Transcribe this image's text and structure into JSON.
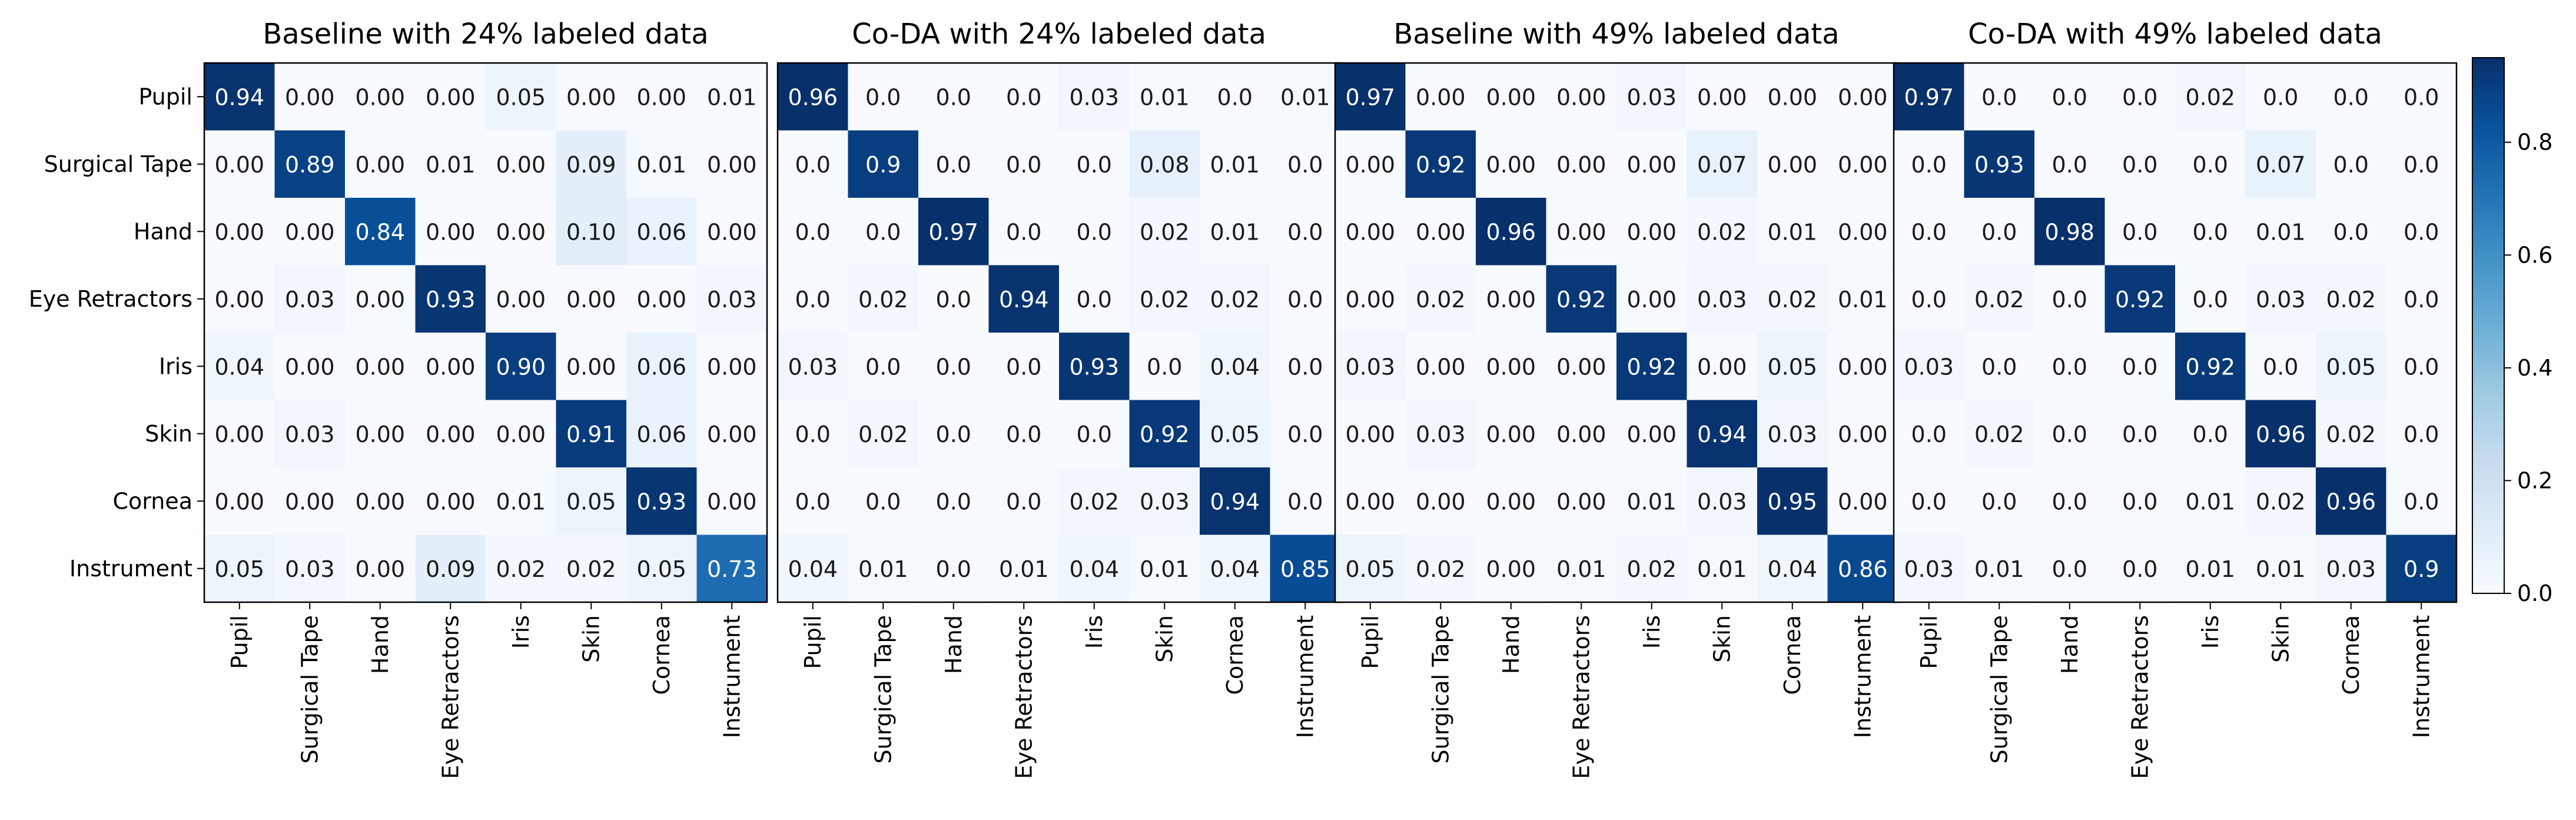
{
  "chart_data": [
    {
      "type": "heatmap",
      "title": "Baseline with 24% labeled data",
      "rows": [
        "Pupil",
        "Surgical Tape",
        "Hand",
        "Eye Retractors",
        "Iris",
        "Skin",
        "Cornea",
        "Instrument"
      ],
      "cols": [
        "Pupil",
        "Surgical Tape",
        "Hand",
        "Eye Retractors",
        "Iris",
        "Skin",
        "Cornea",
        "Instrument"
      ],
      "values": [
        [
          0.94,
          0.0,
          0.0,
          0.0,
          0.05,
          0.0,
          0.0,
          0.01
        ],
        [
          0.0,
          0.89,
          0.0,
          0.01,
          0.0,
          0.09,
          0.01,
          0.0
        ],
        [
          0.0,
          0.0,
          0.84,
          0.0,
          0.0,
          0.1,
          0.06,
          0.0
        ],
        [
          0.0,
          0.03,
          0.0,
          0.93,
          0.0,
          0.0,
          0.0,
          0.03
        ],
        [
          0.04,
          0.0,
          0.0,
          0.0,
          0.9,
          0.0,
          0.06,
          0.0
        ],
        [
          0.0,
          0.03,
          0.0,
          0.0,
          0.0,
          0.91,
          0.06,
          0.0
        ],
        [
          0.0,
          0.0,
          0.0,
          0.0,
          0.01,
          0.05,
          0.93,
          0.0
        ],
        [
          0.05,
          0.03,
          0.0,
          0.09,
          0.02,
          0.02,
          0.05,
          0.73
        ]
      ],
      "labels": [
        [
          "0.94",
          "0.00",
          "0.00",
          "0.00",
          "0.05",
          "0.00",
          "0.00",
          "0.01"
        ],
        [
          "0.00",
          "0.89",
          "0.00",
          "0.01",
          "0.00",
          "0.09",
          "0.01",
          "0.00"
        ],
        [
          "0.00",
          "0.00",
          "0.84",
          "0.00",
          "0.00",
          "0.10",
          "0.06",
          "0.00"
        ],
        [
          "0.00",
          "0.03",
          "0.00",
          "0.93",
          "0.00",
          "0.00",
          "0.00",
          "0.03"
        ],
        [
          "0.04",
          "0.00",
          "0.00",
          "0.00",
          "0.90",
          "0.00",
          "0.06",
          "0.00"
        ],
        [
          "0.00",
          "0.03",
          "0.00",
          "0.00",
          "0.00",
          "0.91",
          "0.06",
          "0.00"
        ],
        [
          "0.00",
          "0.00",
          "0.00",
          "0.00",
          "0.01",
          "0.05",
          "0.93",
          "0.00"
        ],
        [
          "0.05",
          "0.03",
          "0.00",
          "0.09",
          "0.02",
          "0.02",
          "0.05",
          "0.73"
        ]
      ]
    },
    {
      "type": "heatmap",
      "title": "Co-DA with 24% labeled data",
      "rows": [
        "Pupil",
        "Surgical Tape",
        "Hand",
        "Eye Retractors",
        "Iris",
        "Skin",
        "Cornea",
        "Instrument"
      ],
      "cols": [
        "Pupil",
        "Surgical Tape",
        "Hand",
        "Eye Retractors",
        "Iris",
        "Skin",
        "Cornea",
        "Instrument"
      ],
      "values": [
        [
          0.96,
          0.0,
          0.0,
          0.0,
          0.03,
          0.01,
          0.0,
          0.01
        ],
        [
          0.0,
          0.9,
          0.0,
          0.0,
          0.0,
          0.08,
          0.01,
          0.0
        ],
        [
          0.0,
          0.0,
          0.97,
          0.0,
          0.0,
          0.02,
          0.01,
          0.0
        ],
        [
          0.0,
          0.02,
          0.0,
          0.94,
          0.0,
          0.02,
          0.02,
          0.0
        ],
        [
          0.03,
          0.0,
          0.0,
          0.0,
          0.93,
          0.0,
          0.04,
          0.0
        ],
        [
          0.0,
          0.02,
          0.0,
          0.0,
          0.0,
          0.92,
          0.05,
          0.0
        ],
        [
          0.0,
          0.0,
          0.0,
          0.0,
          0.02,
          0.03,
          0.94,
          0.0
        ],
        [
          0.04,
          0.01,
          0.0,
          0.01,
          0.04,
          0.01,
          0.04,
          0.85
        ]
      ],
      "labels": [
        [
          "0.96",
          "0.0",
          "0.0",
          "0.0",
          "0.03",
          "0.01",
          "0.0",
          "0.01"
        ],
        [
          "0.0",
          "0.9",
          "0.0",
          "0.0",
          "0.0",
          "0.08",
          "0.01",
          "0.0"
        ],
        [
          "0.0",
          "0.0",
          "0.97",
          "0.0",
          "0.0",
          "0.02",
          "0.01",
          "0.0"
        ],
        [
          "0.0",
          "0.02",
          "0.0",
          "0.94",
          "0.0",
          "0.02",
          "0.02",
          "0.0"
        ],
        [
          "0.03",
          "0.0",
          "0.0",
          "0.0",
          "0.93",
          "0.0",
          "0.04",
          "0.0"
        ],
        [
          "0.0",
          "0.02",
          "0.0",
          "0.0",
          "0.0",
          "0.92",
          "0.05",
          "0.0"
        ],
        [
          "0.0",
          "0.0",
          "0.0",
          "0.0",
          "0.02",
          "0.03",
          "0.94",
          "0.0"
        ],
        [
          "0.04",
          "0.01",
          "0.0",
          "0.01",
          "0.04",
          "0.01",
          "0.04",
          "0.85"
        ]
      ]
    },
    {
      "type": "heatmap",
      "title": "Baseline with 49% labeled data",
      "rows": [
        "Pupil",
        "Surgical Tape",
        "Hand",
        "Eye Retractors",
        "Iris",
        "Skin",
        "Cornea",
        "Instrument"
      ],
      "cols": [
        "Pupil",
        "Surgical Tape",
        "Hand",
        "Eye Retractors",
        "Iris",
        "Skin",
        "Cornea",
        "Instrument"
      ],
      "values": [
        [
          0.97,
          0.0,
          0.0,
          0.0,
          0.03,
          0.0,
          0.0,
          0.0
        ],
        [
          0.0,
          0.92,
          0.0,
          0.0,
          0.0,
          0.07,
          0.0,
          0.0
        ],
        [
          0.0,
          0.0,
          0.96,
          0.0,
          0.0,
          0.02,
          0.01,
          0.0
        ],
        [
          0.0,
          0.02,
          0.0,
          0.92,
          0.0,
          0.03,
          0.02,
          0.01
        ],
        [
          0.03,
          0.0,
          0.0,
          0.0,
          0.92,
          0.0,
          0.05,
          0.0
        ],
        [
          0.0,
          0.03,
          0.0,
          0.0,
          0.0,
          0.94,
          0.03,
          0.0
        ],
        [
          0.0,
          0.0,
          0.0,
          0.0,
          0.01,
          0.03,
          0.95,
          0.0
        ],
        [
          0.05,
          0.02,
          0.0,
          0.01,
          0.02,
          0.01,
          0.04,
          0.86
        ]
      ],
      "labels": [
        [
          "0.97",
          "0.00",
          "0.00",
          "0.00",
          "0.03",
          "0.00",
          "0.00",
          "0.00"
        ],
        [
          "0.00",
          "0.92",
          "0.00",
          "0.00",
          "0.00",
          "0.07",
          "0.00",
          "0.00"
        ],
        [
          "0.00",
          "0.00",
          "0.96",
          "0.00",
          "0.00",
          "0.02",
          "0.01",
          "0.00"
        ],
        [
          "0.00",
          "0.02",
          "0.00",
          "0.92",
          "0.00",
          "0.03",
          "0.02",
          "0.01"
        ],
        [
          "0.03",
          "0.00",
          "0.00",
          "0.00",
          "0.92",
          "0.00",
          "0.05",
          "0.00"
        ],
        [
          "0.00",
          "0.03",
          "0.00",
          "0.00",
          "0.00",
          "0.94",
          "0.03",
          "0.00"
        ],
        [
          "0.00",
          "0.00",
          "0.00",
          "0.00",
          "0.01",
          "0.03",
          "0.95",
          "0.00"
        ],
        [
          "0.05",
          "0.02",
          "0.00",
          "0.01",
          "0.02",
          "0.01",
          "0.04",
          "0.86"
        ]
      ]
    },
    {
      "type": "heatmap",
      "title": "Co-DA with 49% labeled data",
      "rows": [
        "Pupil",
        "Surgical Tape",
        "Hand",
        "Eye Retractors",
        "Iris",
        "Skin",
        "Cornea",
        "Instrument"
      ],
      "cols": [
        "Pupil",
        "Surgical Tape",
        "Hand",
        "Eye Retractors",
        "Iris",
        "Skin",
        "Cornea",
        "Instrument"
      ],
      "values": [
        [
          0.97,
          0.0,
          0.0,
          0.0,
          0.02,
          0.0,
          0.0,
          0.0
        ],
        [
          0.0,
          0.93,
          0.0,
          0.0,
          0.0,
          0.07,
          0.0,
          0.0
        ],
        [
          0.0,
          0.0,
          0.98,
          0.0,
          0.0,
          0.01,
          0.0,
          0.0
        ],
        [
          0.0,
          0.02,
          0.0,
          0.92,
          0.0,
          0.03,
          0.02,
          0.0
        ],
        [
          0.03,
          0.0,
          0.0,
          0.0,
          0.92,
          0.0,
          0.05,
          0.0
        ],
        [
          0.0,
          0.02,
          0.0,
          0.0,
          0.0,
          0.96,
          0.02,
          0.0
        ],
        [
          0.0,
          0.0,
          0.0,
          0.0,
          0.01,
          0.02,
          0.96,
          0.0
        ],
        [
          0.03,
          0.01,
          0.0,
          0.0,
          0.01,
          0.01,
          0.03,
          0.9
        ]
      ],
      "labels": [
        [
          "0.97",
          "0.0",
          "0.0",
          "0.0",
          "0.02",
          "0.0",
          "0.0",
          "0.0"
        ],
        [
          "0.0",
          "0.93",
          "0.0",
          "0.0",
          "0.0",
          "0.07",
          "0.0",
          "0.0"
        ],
        [
          "0.0",
          "0.0",
          "0.98",
          "0.0",
          "0.0",
          "0.01",
          "0.0",
          "0.0"
        ],
        [
          "0.0",
          "0.02",
          "0.0",
          "0.92",
          "0.0",
          "0.03",
          "0.02",
          "0.0"
        ],
        [
          "0.03",
          "0.0",
          "0.0",
          "0.0",
          "0.92",
          "0.0",
          "0.05",
          "0.0"
        ],
        [
          "0.0",
          "0.02",
          "0.0",
          "0.0",
          "0.0",
          "0.96",
          "0.02",
          "0.0"
        ],
        [
          "0.0",
          "0.0",
          "0.0",
          "0.0",
          "0.01",
          "0.02",
          "0.96",
          "0.0"
        ],
        [
          "0.03",
          "0.01",
          "0.0",
          "0.0",
          "0.01",
          "0.01",
          "0.03",
          "0.9"
        ]
      ]
    }
  ],
  "colorbar": {
    "range": [
      0.0,
      0.95
    ],
    "ticks": [
      0.0,
      0.2,
      0.4,
      0.6,
      0.8
    ],
    "tick_labels": [
      "0.0",
      "0.2",
      "0.4",
      "0.6",
      "0.8"
    ],
    "colormap": "Blues",
    "color_low": "#f7fbff",
    "color_high": "#08306b"
  }
}
